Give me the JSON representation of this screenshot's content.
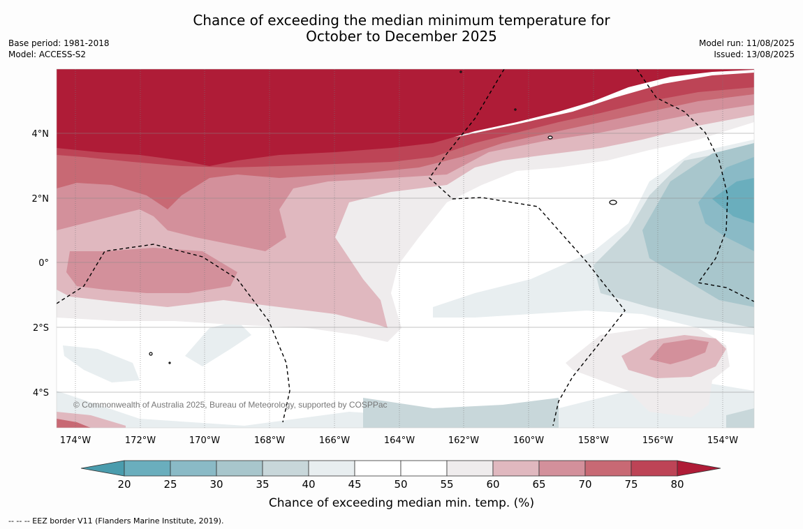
{
  "header": {
    "title_line1": "Chance of exceeding the median minimum temperature for",
    "title_line2": "October to December 2025",
    "base_period": "Base period: 1981-2018",
    "model": "Model: ACCESS-S2",
    "model_run": "Model run: 11/08/2025",
    "issued": "Issued: 13/08/2025"
  },
  "map": {
    "copyright": "© Commonwealth of Australia 2025, Bureau of Meteorology, supported by COSPPac",
    "lon_labels": [
      "174°W",
      "172°W",
      "170°W",
      "168°W",
      "166°W",
      "164°W",
      "162°W",
      "160°W",
      "158°W",
      "156°W",
      "154°W"
    ],
    "lat_labels": [
      "4°N",
      "2°N",
      "0°",
      "2°S",
      "4°S"
    ]
  },
  "colorbar": {
    "ticks": [
      "20",
      "25",
      "30",
      "35",
      "40",
      "45",
      "50",
      "55",
      "60",
      "65",
      "70",
      "75",
      "80"
    ],
    "label": "Chance of exceeding median min. temp. (%)",
    "colors": [
      "#4a9cad",
      "#6aaebd",
      "#8abac6",
      "#a8c6cc",
      "#c8d7da",
      "#e8eef0",
      "#ffffff",
      "#ffffff",
      "#efeced",
      "#e0b8bf",
      "#d3909b",
      "#c86974",
      "#bd4456",
      "#af1c37"
    ]
  },
  "footer": {
    "legend": "--  --  -- EEZ border V11 (Flanders Marine Institute, 2019)."
  }
}
